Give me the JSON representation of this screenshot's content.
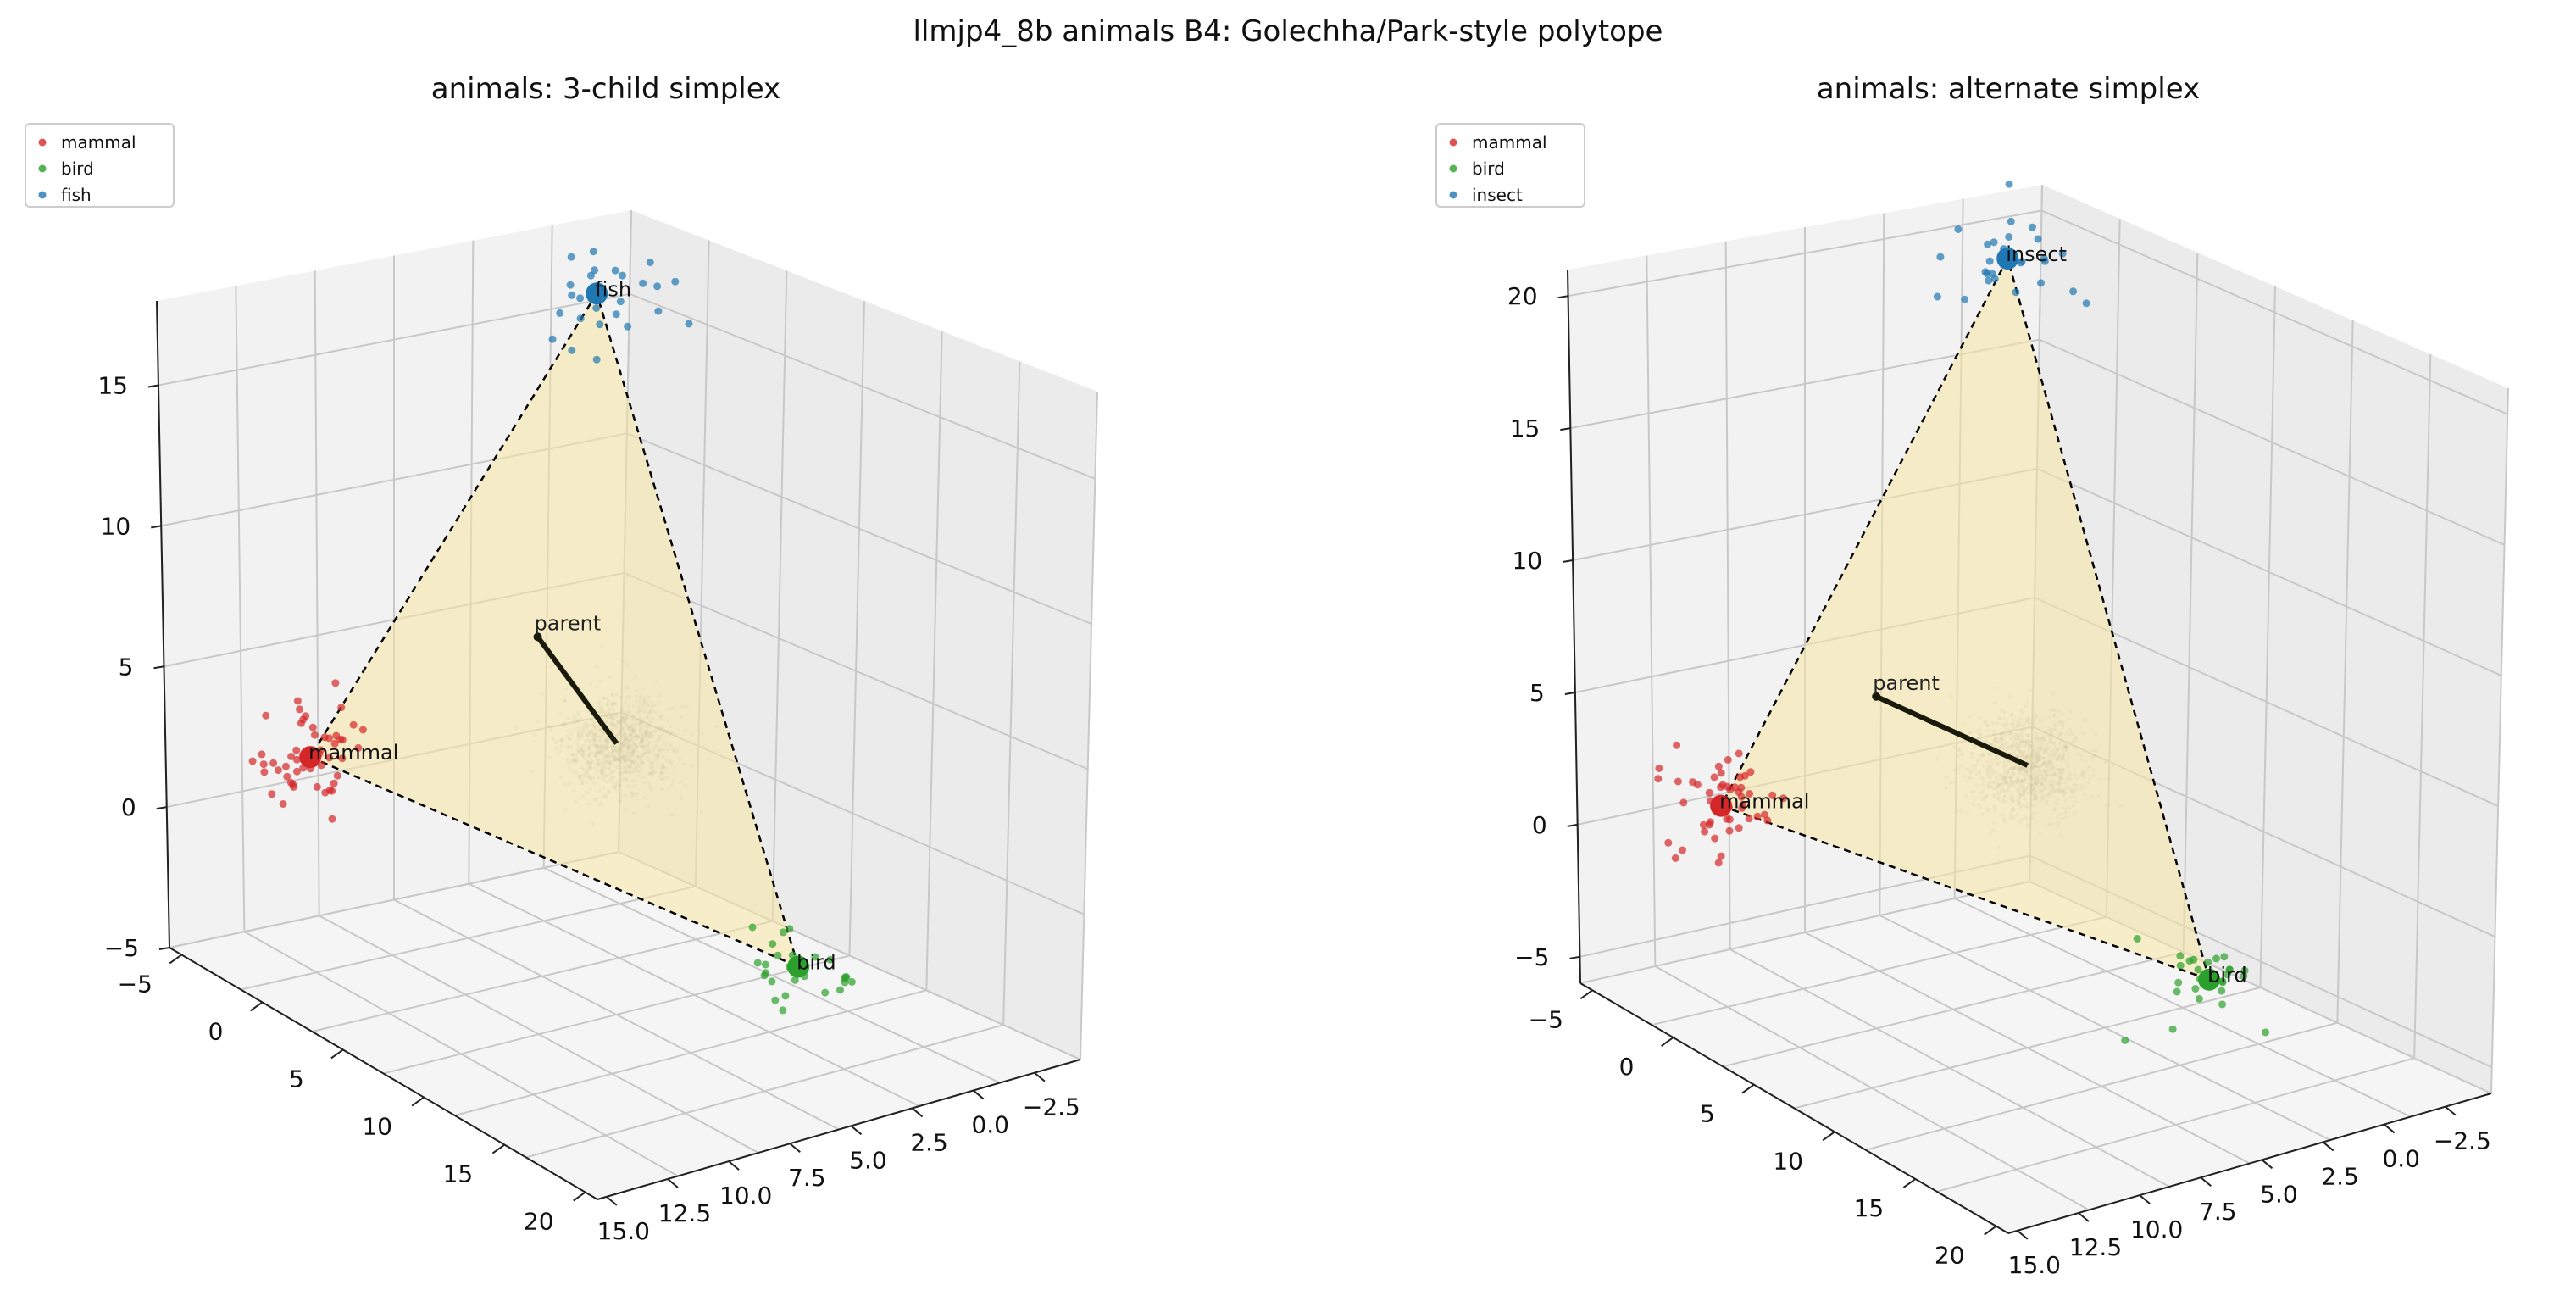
{
  "figure": {
    "suptitle": "llmjp4_8b animals B4: Golechha/Park-style polytope"
  },
  "colors": {
    "mammal": "#d62728",
    "bird": "#2ca02c",
    "fish": "#1f77b4",
    "insect": "#1f77b4",
    "simplex_fill": "#f7e6a3",
    "cloud": "#7f7f7f"
  },
  "chart_data": [
    {
      "type": "scatter",
      "subtype": "3d-scatter-with-simplex",
      "title": "animals: 3-child simplex",
      "legend": {
        "placement": "top-left",
        "entries": [
          "mammal",
          "bird",
          "fish"
        ]
      },
      "grid": true,
      "axes": {
        "x": {
          "ticks": [
            "15.0",
            "12.5",
            "10.0",
            "7.5",
            "5.0",
            "2.5",
            "0.0",
            "−2.5"
          ],
          "range": [
            -2.5,
            15.0
          ]
        },
        "y": {
          "ticks": [
            "−5",
            "0",
            "5",
            "10",
            "15",
            "20"
          ],
          "range": [
            -5,
            20
          ]
        },
        "z": {
          "ticks": [
            "−5",
            "0",
            "5",
            "10",
            "15"
          ],
          "range": [
            -5,
            18
          ]
        }
      },
      "vertices": [
        {
          "label": "mammal",
          "x": 13.0,
          "y": 0.0,
          "z": 3.0
        },
        {
          "label": "bird",
          "x": 4.0,
          "y": 14.0,
          "z": -2.0
        },
        {
          "label": "fish",
          "x": 2.0,
          "y": -1.0,
          "z": 16.0
        }
      ],
      "parent": {
        "label": "parent",
        "tip": {
          "x": 6.0,
          "y": 2.0,
          "z": 6.0
        },
        "origin": {
          "x": 5.0,
          "y": 5.0,
          "z": 3.0
        }
      },
      "cloud_center": {
        "x": 5.0,
        "y": 5.0,
        "z": 3.0
      },
      "annotations": [
        "mammal",
        "bird",
        "fish",
        "parent"
      ]
    },
    {
      "type": "scatter",
      "subtype": "3d-scatter-with-simplex",
      "title": "animals: alternate simplex",
      "legend": {
        "placement": "top-left",
        "entries": [
          "mammal",
          "bird",
          "insect"
        ]
      },
      "grid": true,
      "axes": {
        "x": {
          "ticks": [
            "15.0",
            "12.5",
            "10.0",
            "7.5",
            "5.0",
            "2.5",
            "0.0",
            "−2.5"
          ],
          "range": [
            -2.5,
            15.0
          ]
        },
        "y": {
          "ticks": [
            "−5",
            "0",
            "5",
            "10",
            "15",
            "20"
          ],
          "range": [
            -5,
            20
          ]
        },
        "z": {
          "ticks": [
            "−5",
            "0",
            "5",
            "10",
            "15",
            "20"
          ],
          "range": [
            -6,
            21
          ]
        }
      },
      "vertices": [
        {
          "label": "mammal",
          "x": 13.0,
          "y": 0.0,
          "z": 2.0
        },
        {
          "label": "bird",
          "x": 4.0,
          "y": 14.0,
          "z": -2.0
        },
        {
          "label": "insect",
          "x": 2.0,
          "y": -1.0,
          "z": 19.0
        }
      ],
      "parent": {
        "label": "parent",
        "tip": {
          "x": 8.0,
          "y": 1.0,
          "z": 5.0
        },
        "origin": {
          "x": 5.0,
          "y": 5.0,
          "z": 3.0
        }
      },
      "cloud_center": {
        "x": 5.0,
        "y": 5.0,
        "z": 3.0
      },
      "annotations": [
        "mammal",
        "bird",
        "insect",
        "parent"
      ]
    }
  ]
}
